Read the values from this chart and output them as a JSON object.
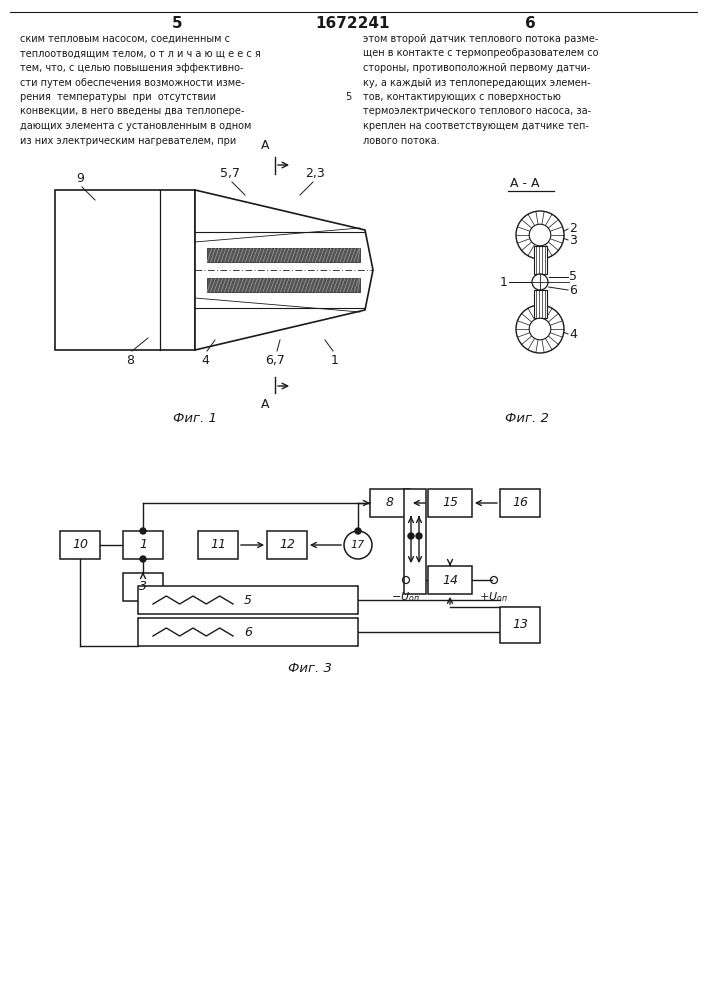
{
  "page_title": "1672241",
  "page_left": "5",
  "page_right": "6",
  "text_left_lines": [
    "ским тепловым насосом, соединенным с",
    "теплоотводящим телом, о т л и ч а ю щ е е с я",
    "тем, что, с целью повышения эффективно-",
    "сти путем обеспечения возможности изме-",
    "рения  температуры  при  отсутствии",
    "конвекции, в него введены два теплопере-",
    "дающих элемента с установленным в одном",
    "из них электрическим нагревателем, при"
  ],
  "text_right_lines": [
    "этом второй датчик теплового потока разме-",
    "щен в контакте с термопреобразователем со",
    "стороны, противоположной первому датчи-",
    "ку, а каждый из теплопередающих элемен-",
    "тов, контактирующих с поверхностью",
    "термоэлектрического теплового насоса, за-",
    "креплен на соответствующем датчике теп-",
    "лового потока."
  ],
  "inline_5": "5",
  "fig1_caption": "Фиг. 1",
  "fig2_caption": "Фиг. 2",
  "fig3_caption": "Фиг. 3",
  "bg_color": "#ffffff",
  "line_color": "#1a1a1a"
}
